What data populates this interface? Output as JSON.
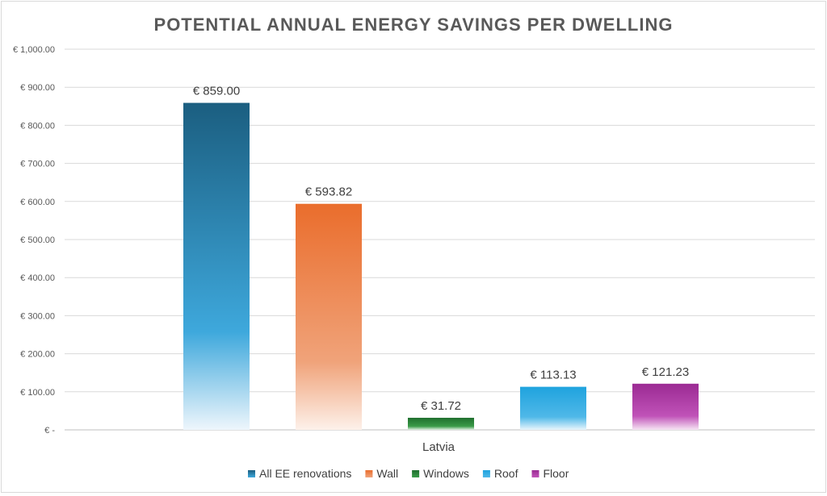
{
  "chart_data": {
    "type": "bar",
    "title": "POTENTIAL ANNUAL ENERGY SAVINGS PER DWELLING",
    "categories": [
      "Latvia"
    ],
    "ylim": [
      0,
      1000
    ],
    "yticks": [
      {
        "value": 0,
        "label": "€ -"
      },
      {
        "value": 100,
        "label": "€ 100.00"
      },
      {
        "value": 200,
        "label": "€ 200.00"
      },
      {
        "value": 300,
        "label": "€ 300.00"
      },
      {
        "value": 400,
        "label": "€ 400.00"
      },
      {
        "value": 500,
        "label": "€ 500.00"
      },
      {
        "value": 600,
        "label": "€ 600.00"
      },
      {
        "value": 700,
        "label": "€ 700.00"
      },
      {
        "value": 800,
        "label": "€ 800.00"
      },
      {
        "value": 900,
        "label": "€ 900.00"
      },
      {
        "value": 1000,
        "label": "€ 1,000.00"
      }
    ],
    "grid": true,
    "legend_position": "bottom",
    "series": [
      {
        "name": "All EE renovations",
        "values": [
          859.0
        ],
        "label": "€ 859.00",
        "color_top": "#1b5e80",
        "color_mid": "#3ea8dc",
        "color_bottom": "#eef6fc"
      },
      {
        "name": "Wall",
        "values": [
          593.82
        ],
        "label": "€ 593.82",
        "color_top": "#ea6d2c",
        "color_mid": "#f0a37a",
        "color_bottom": "#fdf1ea"
      },
      {
        "name": "Windows",
        "values": [
          31.72
        ],
        "label": "€ 31.72",
        "color_top": "#1f6f2e",
        "color_mid": "#3a9b48",
        "color_bottom": "#dff0e1"
      },
      {
        "name": "Roof",
        "values": [
          113.13
        ],
        "label": "€ 113.13",
        "color_top": "#1fa3de",
        "color_mid": "#4fb8e8",
        "color_bottom": "#e9f6fc"
      },
      {
        "name": "Floor",
        "values": [
          121.23
        ],
        "label": "€ 121.23",
        "color_top": "#9b2a93",
        "color_mid": "#c052b8",
        "color_bottom": "#f6e5f4"
      }
    ]
  }
}
